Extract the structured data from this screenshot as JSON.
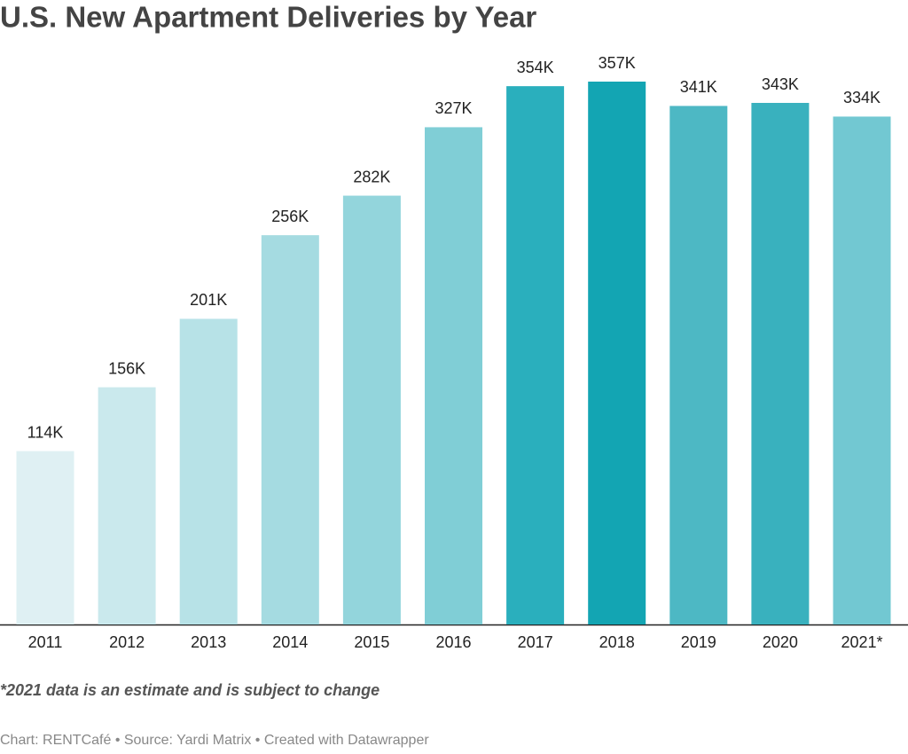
{
  "chart_data": {
    "type": "bar",
    "title": "U.S. New Apartment Deliveries by Year",
    "categories": [
      "2011",
      "2012",
      "2013",
      "2014",
      "2015",
      "2016",
      "2017",
      "2018",
      "2019",
      "2020",
      "2021*"
    ],
    "values": [
      114,
      156,
      201,
      256,
      282,
      327,
      354,
      357,
      341,
      343,
      334
    ],
    "value_labels": [
      "114K",
      "156K",
      "201K",
      "256K",
      "282K",
      "327K",
      "354K",
      "357K",
      "341K",
      "343K",
      "334K"
    ],
    "colors": [
      "#dff0f3",
      "#cae9ed",
      "#b7e2e7",
      "#a5dbe1",
      "#93d5dc",
      "#80ced6",
      "#2aafbd",
      "#13a5b3",
      "#4db8c4",
      "#39b1be",
      "#72c8d2"
    ],
    "note": "*2021 data is an estimate and is subject to change",
    "footer": "Chart: RENTCafé • Source: Yardi Matrix • Created with Datawrapper"
  }
}
